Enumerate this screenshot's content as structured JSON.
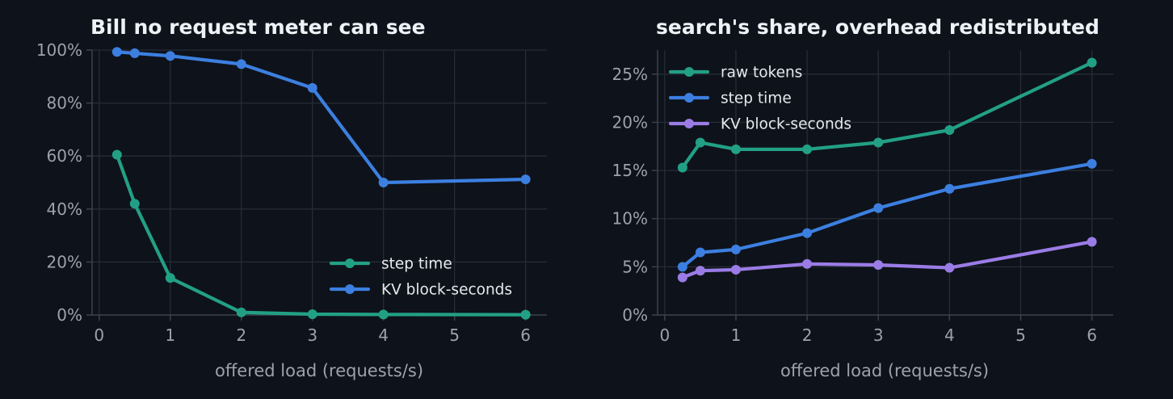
{
  "colors": {
    "background": "#0e121a",
    "green": "#22a085",
    "blue": "#3c7fe0",
    "purple": "#9b7ce6"
  },
  "chart_data": [
    {
      "type": "line",
      "title": "Bill no request meter can see",
      "xlabel": "offered load (requests/s)",
      "ylabel": "",
      "xlim": [
        -0.1,
        6.3
      ],
      "ylim": [
        0,
        100
      ],
      "xticks": [
        0,
        1,
        2,
        3,
        4,
        5,
        6
      ],
      "yticks": [
        0,
        20,
        40,
        60,
        80,
        100
      ],
      "ytick_format": "percent",
      "grid": true,
      "legend_position": "lower-right",
      "series": [
        {
          "name": "step time",
          "color": "#22a085",
          "x": [
            0.25,
            0.5,
            1,
            2,
            3,
            4,
            6
          ],
          "y": [
            60.5,
            42,
            14,
            1,
            0.3,
            0.2,
            0.1
          ]
        },
        {
          "name": "KV block-seconds",
          "color": "#3c7fe0",
          "x": [
            0.25,
            0.5,
            1,
            2,
            3,
            4,
            6
          ],
          "y": [
            99.3,
            98.8,
            97.8,
            94.7,
            85.7,
            50,
            51.2
          ]
        }
      ]
    },
    {
      "type": "line",
      "title": "search's share, overhead redistributed",
      "xlabel": "offered load (requests/s)",
      "ylabel": "",
      "xlim": [
        -0.1,
        6.3
      ],
      "ylim": [
        0,
        27.5
      ],
      "xticks": [
        0,
        1,
        2,
        3,
        4,
        5,
        6
      ],
      "yticks": [
        0,
        5,
        10,
        15,
        20,
        25
      ],
      "ytick_format": "percent",
      "grid": true,
      "legend_position": "upper-left",
      "series": [
        {
          "name": "raw tokens",
          "color": "#22a085",
          "x": [
            0.25,
            0.5,
            1,
            2,
            3,
            4,
            6
          ],
          "y": [
            15.3,
            17.9,
            17.2,
            17.2,
            17.9,
            19.2,
            26.2
          ]
        },
        {
          "name": "step time",
          "color": "#3c7fe0",
          "x": [
            0.25,
            0.5,
            1,
            2,
            3,
            4,
            6
          ],
          "y": [
            5.0,
            6.5,
            6.8,
            8.5,
            11.1,
            13.1,
            15.7
          ]
        },
        {
          "name": "KV block-seconds",
          "color": "#9b7ce6",
          "x": [
            0.25,
            0.5,
            1,
            2,
            3,
            4,
            6
          ],
          "y": [
            3.9,
            4.6,
            4.7,
            5.3,
            5.2,
            4.9,
            7.6
          ]
        }
      ]
    }
  ]
}
